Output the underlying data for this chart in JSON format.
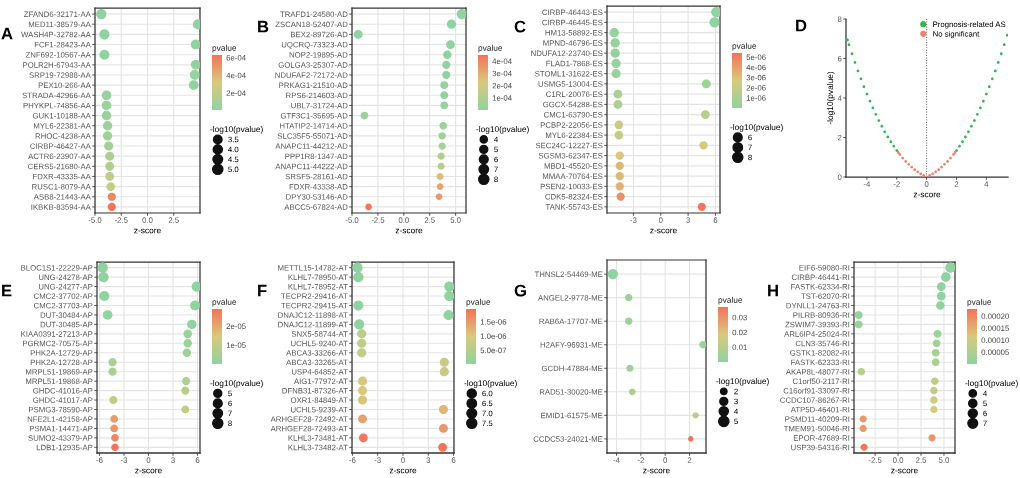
{
  "chart_data": [
    {
      "type": "bubble",
      "title": "A",
      "orientation": "horizontal",
      "xlabel": "z-score",
      "clabel": "pvalue",
      "legend_title": "-log10(pvalue)",
      "grid": true,
      "marker": "circle",
      "categories": [
        "ZFAND6-32171-AA",
        "MED11-38579-AA",
        "WASH4P-32782-AA",
        "FCF1-28423-AA",
        "ZNF692-10567-AA",
        "POLR2H-67943-AA",
        "SRP19-72988-AA",
        "PEX10-266-AA",
        "STRADA-42966-AA",
        "PHYKPL-74856-AA",
        "GUK1-10188-AA",
        "MYL6-22381-AA",
        "RHOC-4238-AA",
        "CIRBP-46427-AA",
        "ACTR6-23907-AA",
        "CERS5-21680-AA",
        "FDXR-43335-AA",
        "RUSC1-8079-AA",
        "ASB8-21443-AA",
        "IKBKB-83594-AA"
      ],
      "values": [
        -4.4,
        4.8,
        -4.1,
        4.6,
        -4.1,
        4.6,
        4.5,
        4.4,
        -3.9,
        -3.9,
        -3.9,
        -3.8,
        -3.8,
        -3.7,
        -3.6,
        -3.6,
        -3.6,
        -3.5,
        -3.4,
        -3.4
      ],
      "sizes": [
        5.1,
        5.0,
        4.9,
        4.8,
        4.7,
        4.6,
        4.55,
        4.5,
        4.4,
        4.35,
        4.3,
        4.2,
        4.1,
        4.0,
        3.9,
        3.8,
        3.7,
        3.6,
        3.25,
        3.2
      ],
      "cvalues": [
        7.9e-06,
        1e-05,
        1.26e-05,
        1.58e-05,
        2e-05,
        2.5e-05,
        2.8e-05,
        3.2e-05,
        4e-05,
        4.5e-05,
        5e-05,
        6.3e-05,
        7.9e-05,
        0.0001,
        0.000126,
        0.000158,
        0.0002,
        0.00025,
        0.00056,
        0.00063
      ],
      "size_legend": [
        3.5,
        {
          "value": 4,
          "label": "4.0"
        },
        4.5,
        {
          "value": 5,
          "label": "5.0"
        }
      ],
      "clim": [
        7.9e-06,
        0.00063
      ],
      "cticks": [
        {
          "value": 0.0002,
          "label": "2e-04"
        },
        {
          "value": 0.0004,
          "label": "4e-04"
        },
        {
          "value": 0.0006,
          "label": "6e-04"
        }
      ],
      "xlim": [
        -5,
        5
      ],
      "xticks": [
        {
          "value": -5,
          "label": "-5.0"
        },
        {
          "value": -2.5,
          "label": "-2.5"
        },
        {
          "value": 0,
          "label": "0.0"
        },
        {
          "value": 2.5,
          "label": "2.5"
        }
      ]
    },
    {
      "type": "bubble",
      "title": "B",
      "orientation": "horizontal",
      "xlabel": "z-score",
      "clabel": "pvalue",
      "legend_title": "-log10(pvalue)",
      "grid": true,
      "marker": "circle",
      "categories": [
        "TRAFD1-24580-AD",
        "ZSCAN18-52407-AD",
        "BEX2-89726-AD",
        "UQCRQ-73323-AD",
        "NOP2-19895-AD",
        "GOLGA3-25307-AD",
        "NDUFAF2-72172-AD",
        "PRKAG1-21510-AD",
        "RPS6-214603-AD",
        "UBL7-31724-AD",
        "GTF3C1-35695-AD",
        "HTATIP2-14714-AD",
        "SLC35F5-55071-AD",
        "ANAPC11-44212-AD",
        "PPP1R8-1347-AD",
        "ANAPC11-44222-AD",
        "SRSF5-28161-AD",
        "FDXR-43338-AD",
        "DPY30-53146-AD",
        "ABCC5-67824-AD"
      ],
      "values": [
        5.6,
        4.6,
        -4.4,
        4.5,
        4.2,
        4.1,
        4.1,
        3.9,
        3.9,
        3.9,
        -3.8,
        3.8,
        3.7,
        3.7,
        3.6,
        3.6,
        3.5,
        3.5,
        3.4,
        -3.4
      ],
      "sizes": [
        8.2,
        6.6,
        6.1,
        6.0,
        5.5,
        5.2,
        5.1,
        4.9,
        4.85,
        4.8,
        4.6,
        4.5,
        4.3,
        4.1,
        4.0,
        3.9,
        3.6,
        3.5,
        3.45,
        3.35
      ],
      "cvalues": [
        6.3e-09,
        2.5e-07,
        7.9e-07,
        1e-06,
        3.2e-06,
        6.3e-06,
        7.9e-06,
        1.26e-05,
        1.4e-05,
        1.58e-05,
        2.5e-05,
        3.2e-05,
        5e-05,
        7.9e-05,
        0.0001,
        0.000126,
        0.00025,
        0.00032,
        0.00035,
        0.00045
      ],
      "size_legend": [
        4,
        5,
        6,
        7,
        8
      ],
      "clim": [
        6.3e-09,
        0.00045
      ],
      "cticks": [
        {
          "value": 0.0001,
          "label": "1e-04"
        },
        {
          "value": 0.0002,
          "label": "2e-04"
        },
        {
          "value": 0.0003,
          "label": "3e-04"
        },
        {
          "value": 0.0004,
          "label": "4e-04"
        }
      ],
      "xlim": [
        -5,
        6
      ],
      "xticks": [
        {
          "value": -5,
          "label": "-5.0"
        },
        {
          "value": -2.5,
          "label": "-2.5"
        },
        {
          "value": 0,
          "label": "0.0"
        },
        {
          "value": 2.5,
          "label": "2.5"
        },
        {
          "value": 5,
          "label": "5.0"
        }
      ]
    },
    {
      "type": "bubble",
      "title": "C",
      "orientation": "horizontal",
      "xlabel": "z-score",
      "clabel": "pvalue",
      "legend_title": "-log10(pvalue)",
      "grid": true,
      "marker": "circle",
      "categories": [
        "CIRBP-46443-ES",
        "CIRBP-46445-ES",
        "HM13-58892-ES",
        "MPND-46796-ES",
        "NDUFA12-23740-ES",
        "FLAD1-7868-ES",
        "STOML1-31622-ES",
        "USMG5-13004-ES",
        "C1RL-20076-ES",
        "GGCX-54288-ES",
        "CMC1-63790-ES",
        "PCBP2-22056-ES",
        "MYL6-22384-ES",
        "SEC24C-12227-ES",
        "SGSM3-62347-ES",
        "MBD1-45520-ES",
        "MMAA-70764-ES",
        "PSEN2-10033-ES",
        "CDK5-82324-ES",
        "TANK-55743-ES"
      ],
      "values": [
        6.1,
        5.9,
        -5.1,
        -5.0,
        -5.0,
        -4.9,
        -4.9,
        5.0,
        -4.7,
        -4.7,
        4.9,
        -4.6,
        -4.6,
        4.7,
        -4.5,
        -4.5,
        -4.5,
        -4.5,
        -4.4,
        4.5
      ],
      "sizes": [
        8.3,
        7.9,
        6.85,
        6.75,
        6.7,
        6.6,
        6.5,
        6.2,
        6.0,
        5.95,
        5.85,
        5.7,
        5.7,
        5.6,
        5.55,
        5.5,
        5.5,
        5.45,
        5.35,
        5.27
      ],
      "cvalues": [
        5e-09,
        1.26e-08,
        1.4e-07,
        1.8e-07,
        2e-07,
        2.5e-07,
        3.2e-07,
        6.3e-07,
        1e-06,
        1.1e-06,
        1.4e-06,
        2e-06,
        2e-06,
        2.5e-06,
        2.8e-06,
        3.2e-06,
        3.2e-06,
        3.5e-06,
        4.5e-06,
        5.4e-06
      ],
      "size_legend": [
        6,
        7,
        8
      ],
      "clim": [
        5e-09,
        5.4e-06
      ],
      "cticks": [
        {
          "value": 1e-06,
          "label": "1e-06"
        },
        {
          "value": 2e-06,
          "label": "2e-06"
        },
        {
          "value": 3e-06,
          "label": "3e-06"
        },
        {
          "value": 4e-06,
          "label": "4e-06"
        },
        {
          "value": 5e-06,
          "label": "5e-06"
        }
      ],
      "xlim": [
        -5.9,
        6.5
      ],
      "xticks": [
        -3,
        0,
        3,
        6
      ]
    },
    {
      "type": "scatter",
      "title": "D",
      "xlabel": "z-score",
      "ylabel": "-log10(pvalue)",
      "legend": "top right",
      "grid": false,
      "marker": "circle",
      "series": [
        {
          "name": "Prognosis-related AS",
          "color": "#2db84d",
          "x": [
            -5.3,
            -5.2,
            -5.0,
            -4.8,
            -4.6,
            -4.4,
            -4.2,
            -4.0,
            -3.8,
            -3.6,
            -3.4,
            -3.2,
            -3.0,
            -2.8,
            -2.6,
            -2.4,
            -2.2,
            -2.0,
            2.0,
            2.2,
            2.4,
            2.6,
            2.8,
            3.0,
            3.2,
            3.4,
            3.6,
            3.8,
            4.0,
            4.2,
            4.4,
            4.6,
            4.8,
            5.0,
            5.2,
            5.4
          ],
          "values": [
            6.94,
            6.7,
            6.24,
            5.8,
            5.37,
            4.97,
            4.57,
            4.2,
            3.84,
            3.5,
            3.17,
            2.86,
            2.57,
            2.29,
            2.03,
            1.79,
            1.56,
            1.34,
            1.34,
            1.56,
            1.79,
            2.03,
            2.29,
            2.57,
            2.86,
            3.17,
            3.5,
            3.84,
            4.2,
            4.57,
            4.97,
            5.37,
            5.8,
            6.24,
            6.7,
            7.18
          ]
        },
        {
          "name": "No significant",
          "color": "#f0826a",
          "x": [
            -1.9,
            -1.8,
            -1.6,
            -1.4,
            -1.2,
            -1.0,
            -0.8,
            -0.6,
            -0.4,
            -0.2,
            0,
            0.2,
            0.4,
            0.6,
            0.8,
            1.0,
            1.2,
            1.4,
            1.6,
            1.8,
            1.9
          ],
          "values": [
            1.24,
            1.14,
            0.96,
            0.79,
            0.64,
            0.5,
            0.37,
            0.26,
            0.16,
            0.08,
            0,
            0.08,
            0.16,
            0.26,
            0.37,
            0.5,
            0.64,
            0.79,
            0.96,
            1.14,
            1.24
          ]
        }
      ],
      "ref_lines": [
        {
          "axis": "x",
          "value": 0,
          "line_style": "dotted",
          "color": "#555555"
        }
      ],
      "xlim": [
        -5.4,
        5.45
      ],
      "xticks": [
        -4,
        -2,
        0,
        2,
        4
      ],
      "ylim": [
        0,
        8
      ],
      "yticks": [
        0,
        2,
        4,
        6,
        8
      ]
    },
    {
      "type": "bubble",
      "title": "E",
      "orientation": "horizontal",
      "xlabel": "z-score",
      "clabel": "pvalue",
      "legend_title": "-log10(pvalue)",
      "grid": true,
      "marker": "circle",
      "categories": [
        "BLOC1S1-22229-AP",
        "UNG-24278-AP",
        "UNG-24277-AP",
        "CMC2-37702-AP",
        "CMC2-37703-AP",
        "DUT-30484-AP",
        "DUT-30485-AP",
        "KIAA0391-27213-AP",
        "PGRMC2-70575-AP",
        "PHK2A-12729-AP",
        "PHK2A-12728-AP",
        "MRPL51-19869-AP",
        "MRPL51-19868-AP",
        "GHDC-41016-AP",
        "GHDC-41017-AP",
        "PSMG3-78590-AP",
        "NFE2L1-42158-AP",
        "PSMA1-14471-AP",
        "SUMO2-43379-AP",
        "LDB1-12935-AP"
      ],
      "values": [
        -5.6,
        -5.5,
        5.9,
        -5.4,
        5.7,
        -5.0,
        5.3,
        4.8,
        4.8,
        4.7,
        -4.4,
        -4.4,
        4.6,
        4.5,
        -4.3,
        4.5,
        -4.2,
        -4.2,
        -4.1,
        -4.1
      ],
      "sizes": [
        8.3,
        8.2,
        8.0,
        7.9,
        7.8,
        7.2,
        6.9,
        5.7,
        5.6,
        5.5,
        5.3,
        5.3,
        5.2,
        5.1,
        5.0,
        5.0,
        4.66,
        4.64,
        4.59,
        4.54
      ],
      "cvalues": [
        5e-09,
        6.3e-09,
        1e-08,
        1.26e-08,
        1.6e-08,
        6.3e-08,
        1.26e-07,
        2e-06,
        2.5e-06,
        3e-06,
        5e-06,
        5e-06,
        6e-06,
        8e-06,
        1e-05,
        1e-05,
        2.2e-05,
        2.3e-05,
        2.6e-05,
        2.9e-05
      ],
      "size_legend": [
        5,
        6,
        7,
        8
      ],
      "clim": [
        5e-09,
        2.9e-05
      ],
      "cticks": [
        {
          "value": 1e-05,
          "label": "1e-05"
        },
        {
          "value": 2e-05,
          "label": "2e-05"
        }
      ],
      "xlim": [
        -6.3,
        6.3
      ],
      "xticks": [
        -6,
        -3,
        0,
        3,
        6
      ]
    },
    {
      "type": "bubble",
      "title": "F",
      "orientation": "horizontal",
      "xlabel": "z-score",
      "clabel": "pvalue",
      "legend_title": "-log10(pvalue)",
      "grid": true,
      "marker": "circle",
      "categories": [
        "METTL15-14782-AT",
        "KLHL7-78950-AT",
        "KLHL7-78952-AT",
        "TECPR2-29416-AT",
        "TECPR2-29415-AT",
        "DNAJC12-11898-AT",
        "DNAJC12-11899-AT",
        "SNX5-58744-AT",
        "UCHL5-9240-AT",
        "ABCA3-33266-AT",
        "ABCA3-33265-AT",
        "USP4-64852-AT",
        "AIG1-77972-AT",
        "DFNB31-87326-AT",
        "OXR1-84849-AT",
        "UCHL5-9239-AT",
        "ARHGEF28-72492-AT",
        "ARHGEF28-72493-AT",
        "KLHL3-73481-AT",
        "KLHL3-73482-AT"
      ],
      "values": [
        -5.4,
        -5.3,
        5.5,
        5.5,
        -5.3,
        5.4,
        -5.2,
        -4.9,
        -4.9,
        -4.9,
        4.9,
        4.9,
        -4.8,
        -4.8,
        -4.8,
        4.8,
        -4.8,
        4.8,
        -4.7,
        4.7
      ],
      "sizes": [
        7.8,
        7.7,
        7.66,
        7.6,
        7.6,
        7.5,
        7.46,
        6.22,
        6.22,
        6.15,
        6.12,
        6.12,
        6.05,
        6.0,
        5.98,
        5.92,
        5.85,
        5.82,
        5.72,
        5.71
      ],
      "cvalues": [
        1.6e-08,
        2e-08,
        2.2e-08,
        2.5e-08,
        2.5e-08,
        3.2e-08,
        3.5e-08,
        6e-07,
        6e-07,
        7e-07,
        7.5e-07,
        7.5e-07,
        9e-07,
        1e-06,
        1.05e-06,
        1.2e-06,
        1.4e-06,
        1.5e-06,
        1.9e-06,
        1.95e-06
      ],
      "size_legend": [
        {
          "value": 6,
          "label": "6.0"
        },
        6.5,
        {
          "value": 7,
          "label": "7.0"
        },
        7.5
      ],
      "clim": [
        1.6e-08,
        1.95e-06
      ],
      "cticks": [
        {
          "value": 5e-07,
          "label": "5.0e-07"
        },
        {
          "value": 1e-06,
          "label": "1.0e-06"
        },
        {
          "value": 1.5e-06,
          "label": "1.5e-06"
        }
      ],
      "xlim": [
        -6.05,
        6.05
      ],
      "xticks": [
        -6,
        -3,
        0,
        3,
        6
      ]
    },
    {
      "type": "bubble",
      "title": "G",
      "orientation": "horizontal",
      "xlabel": "z-score",
      "clabel": "pvalue",
      "legend_title": "-log10(pvalue)",
      "grid": true,
      "marker": "circle",
      "categories": [
        "THNSL2-54469-ME",
        "ANGEL2-9778-ME",
        "RAB6A-17707-ME",
        "H2AFY-96931-ME",
        "GCDH-47884-ME",
        "RAD51-30020-ME",
        "EMID1-61575-ME",
        "CCDC53-24021-ME"
      ],
      "values": [
        -4.3,
        -3.0,
        -3.0,
        3.1,
        -2.9,
        -2.7,
        2.5,
        2.1
      ],
      "sizes": [
        4.85,
        2.6,
        2.6,
        2.58,
        2.44,
        2.1,
        1.91,
        1.43
      ],
      "cvalues": [
        1.4e-05,
        0.0025,
        0.0025,
        0.0026,
        0.0036,
        0.008,
        0.0124,
        0.037
      ],
      "size_legend": [
        2,
        3,
        4,
        5
      ],
      "clim": [
        1.4e-05,
        0.037
      ],
      "cticks": [
        0.01,
        0.02,
        0.03
      ],
      "xlim": [
        -4.78,
        3.35
      ],
      "xticks": [
        -4,
        -2,
        0,
        2
      ]
    },
    {
      "type": "bubble",
      "title": "H",
      "orientation": "horizontal",
      "xlabel": "z-score",
      "clabel": "pvalue",
      "legend_title": "-log10(pvalue)",
      "grid": true,
      "marker": "circle",
      "categories": [
        "EIF6-59080-RI",
        "CIRBP-46441-RI",
        "FASTK-62334-RI",
        "TST-62070-RI",
        "DYNLL1-24763-RI",
        "PILRB-80936-RI",
        "ZSWIM7-39393-RI",
        "ARL6IP4-25024-RI",
        "CLN3-35746-RI",
        "GSTK1-82082-RI",
        "FASTK-62333-RI",
        "AKAP8L-48077-RI",
        "C1orf50-2117-RI",
        "C16orf91-33097-RI",
        "CCDC107-86267-RI",
        "ATP5D-46401-RI",
        "PSMD11-40209-RI",
        "TMEM91-50046-RI",
        "EPOR-47689-RI",
        "USP39-54316-RI"
      ],
      "values": [
        5.7,
        5.2,
        4.7,
        4.7,
        4.6,
        -4.3,
        -4.3,
        4.3,
        4.2,
        4.1,
        4.1,
        -4.0,
        4.0,
        3.9,
        3.9,
        3.9,
        -3.8,
        -3.8,
        3.7,
        -3.7
      ],
      "sizes": [
        7.8,
        6.7,
        5.67,
        5.67,
        5.37,
        4.83,
        4.77,
        4.67,
        4.48,
        4.42,
        4.39,
        4.2,
        4.14,
        4.09,
        4.02,
        3.96,
        3.75,
        3.75,
        3.74,
        3.63
      ],
      "cvalues": [
        1.6e-08,
        2e-07,
        2.1e-06,
        2.1e-06,
        4.2e-06,
        1.5e-05,
        1.7e-05,
        2.1e-05,
        3.3e-05,
        3.8e-05,
        4.1e-05,
        6.3e-05,
        7.2e-05,
        8.1e-05,
        9.6e-05,
        0.000109,
        0.000177,
        0.000177,
        0.000184,
        0.00023
      ],
      "size_legend": [
        4,
        5,
        6,
        7
      ],
      "clim": [
        1.6e-08,
        0.00023
      ],
      "cticks": [
        {
          "value": 5e-05,
          "label": "0.00005"
        },
        {
          "value": 0.0001,
          "label": "0.00010"
        },
        {
          "value": 0.00015,
          "label": "0.00015"
        },
        {
          "value": 0.0002,
          "label": "0.00020"
        }
      ],
      "xlim": [
        -4.8,
        6.2
      ],
      "xticks": [
        {
          "value": -2.5,
          "label": "-2.5"
        },
        {
          "value": 0,
          "label": "0.0"
        },
        {
          "value": 2.5,
          "label": "2.5"
        },
        {
          "value": 5,
          "label": "5.0"
        }
      ]
    }
  ]
}
